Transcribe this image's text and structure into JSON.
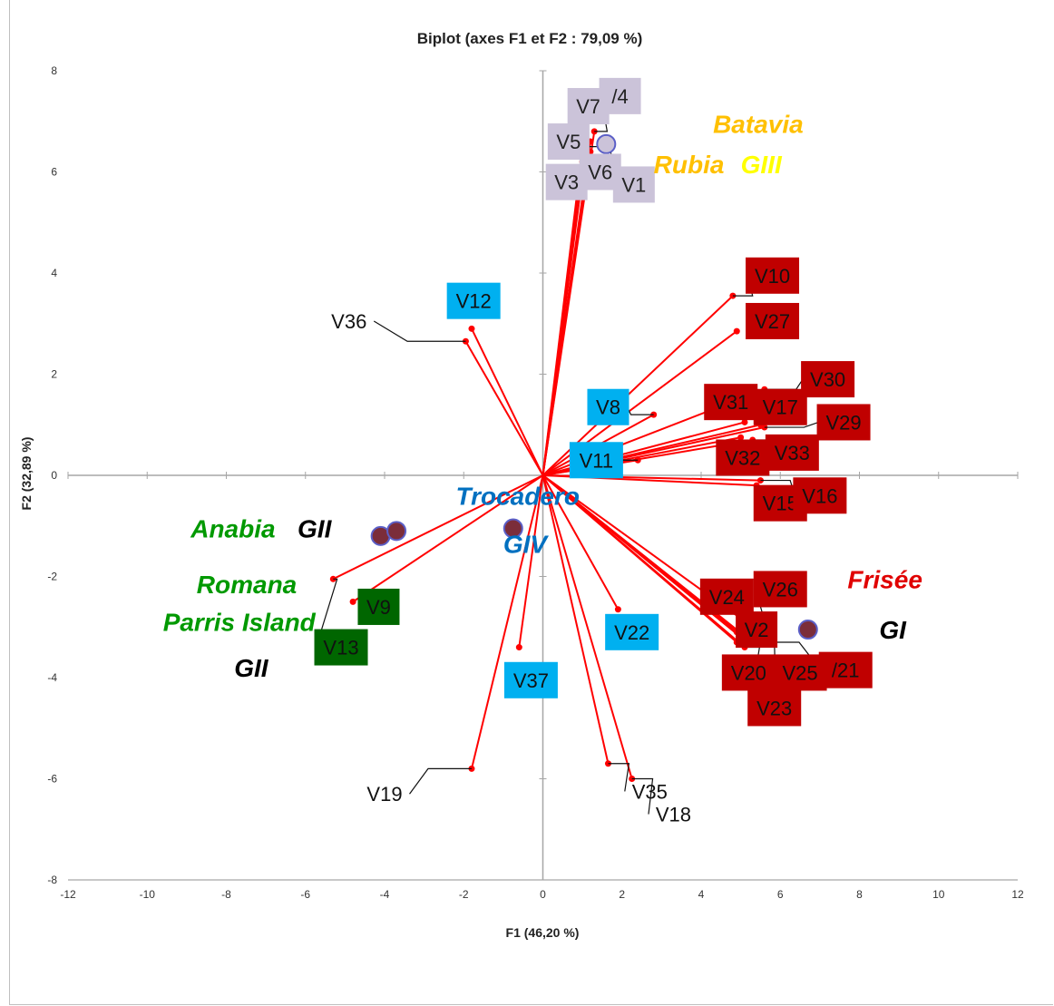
{
  "chart_data": {
    "type": "scatter",
    "subtype": "biplot",
    "title": "Biplot (axes F1 et F2 : 79,09 %)",
    "xlabel": "F1 (46,20 %)",
    "ylabel": "F2 (32,89 %)",
    "xlim": [
      -12,
      12
    ],
    "ylim": [
      -8,
      8
    ],
    "xticks": [
      -12,
      -10,
      -8,
      -6,
      -4,
      -2,
      0,
      2,
      4,
      6,
      8,
      10,
      12
    ],
    "yticks": [
      -8,
      -6,
      -4,
      -2,
      0,
      2,
      4,
      6,
      8
    ],
    "grid": false,
    "colors": {
      "vector": "#ff0000",
      "box_gray": "#cbc3d9",
      "box_blue": "#00b0f0",
      "box_red": "#c00000",
      "box_green": "#006600",
      "obs_fill": "#7b2d3a",
      "obs_stroke": "#5b5fc7"
    },
    "variables": [
      {
        "label": "V1",
        "x": 1.1,
        "y": 6.5,
        "box": "gray",
        "lx": 2.3,
        "ly": 5.75
      },
      {
        "label": "V3",
        "x": 0.9,
        "y": 5.8,
        "box": "gray",
        "lx": 0.6,
        "ly": 5.8
      },
      {
        "label": "V5",
        "x": 1.0,
        "y": 6.2,
        "box": "gray",
        "lx": 0.65,
        "ly": 6.6
      },
      {
        "label": "V6",
        "x": 1.2,
        "y": 6.4,
        "box": "gray",
        "lx": 1.45,
        "ly": 6.0
      },
      {
        "label": "V7",
        "x": 1.2,
        "y": 6.6,
        "box": "gray",
        "lx": 1.15,
        "ly": 7.3
      },
      {
        "label": "/4",
        "x": 1.3,
        "y": 6.8,
        "box": "gray",
        "lx": 1.95,
        "ly": 7.5
      },
      {
        "label": "V8",
        "x": 2.8,
        "y": 1.2,
        "box": "blue",
        "lx": 1.65,
        "ly": 1.35
      },
      {
        "label": "V11",
        "x": 2.4,
        "y": 0.3,
        "box": "blue",
        "lx": 1.35,
        "ly": 0.3
      },
      {
        "label": "V12",
        "x": -1.8,
        "y": 2.9,
        "box": "blue",
        "lx": -1.75,
        "ly": 3.45
      },
      {
        "label": "V22",
        "x": 1.9,
        "y": -2.65,
        "box": "blue",
        "lx": 2.25,
        "ly": -3.1
      },
      {
        "label": "V37",
        "x": -0.6,
        "y": -3.4,
        "box": "blue",
        "lx": -0.3,
        "ly": -4.05
      },
      {
        "label": "V10",
        "x": 4.8,
        "y": 3.55,
        "box": "red",
        "lx": 5.8,
        "ly": 3.95
      },
      {
        "label": "V27",
        "x": 4.9,
        "y": 2.85,
        "box": "red",
        "lx": 5.8,
        "ly": 3.05
      },
      {
        "label": "V30",
        "x": 5.6,
        "y": 1.7,
        "box": "red",
        "lx": 7.2,
        "ly": 1.9
      },
      {
        "label": "V31",
        "x": 5.1,
        "y": 1.05,
        "box": "red",
        "lx": 4.75,
        "ly": 1.45
      },
      {
        "label": "V17",
        "x": 5.5,
        "y": 1.0,
        "box": "red",
        "lx": 6.0,
        "ly": 1.35
      },
      {
        "label": "V29",
        "x": 5.6,
        "y": 0.95,
        "box": "red",
        "lx": 7.6,
        "ly": 1.05
      },
      {
        "label": "V32",
        "x": 5.0,
        "y": 0.75,
        "box": "red",
        "lx": 5.05,
        "ly": 0.35
      },
      {
        "label": "V33",
        "x": 5.3,
        "y": 0.7,
        "box": "red",
        "lx": 6.3,
        "ly": 0.45
      },
      {
        "label": "V15",
        "x": 5.4,
        "y": -0.2,
        "box": "red",
        "lx": 6.0,
        "ly": -0.55
      },
      {
        "label": "V16",
        "x": 5.5,
        "y": -0.1,
        "box": "red",
        "lx": 7.0,
        "ly": -0.4
      },
      {
        "label": "V24",
        "x": 4.9,
        "y": -3.1,
        "box": "red",
        "lx": 4.65,
        "ly": -2.4
      },
      {
        "label": "V26",
        "x": 5.3,
        "y": -3.0,
        "box": "red",
        "lx": 6.0,
        "ly": -2.25
      },
      {
        "label": "V2",
        "x": 5.0,
        "y": -3.2,
        "box": "red",
        "lx": 5.4,
        "ly": -3.05
      },
      {
        "label": "V20",
        "x": 4.9,
        "y": -3.3,
        "box": "red",
        "lx": 5.2,
        "ly": -3.9
      },
      {
        "label": "V25",
        "x": 5.2,
        "y": -3.25,
        "box": "red",
        "lx": 6.5,
        "ly": -3.9
      },
      {
        "label": "/21",
        "x": 5.3,
        "y": -3.3,
        "box": "red",
        "lx": 7.65,
        "ly": -3.85
      },
      {
        "label": "V23",
        "x": 5.1,
        "y": -3.4,
        "box": "red",
        "lx": 5.85,
        "ly": -4.6
      },
      {
        "label": "V9",
        "x": -4.8,
        "y": -2.5,
        "box": "green",
        "lx": -4.15,
        "ly": -2.6
      },
      {
        "label": "V13",
        "x": -5.3,
        "y": -2.05,
        "box": "green",
        "lx": -5.1,
        "ly": -3.4
      },
      {
        "label": "V36",
        "x": -1.95,
        "y": 2.65,
        "box": "none",
        "lx": -4.9,
        "ly": 3.05
      },
      {
        "label": "V19",
        "x": -1.8,
        "y": -5.8,
        "box": "none",
        "lx": -4.0,
        "ly": -6.3
      },
      {
        "label": "V35",
        "x": 1.65,
        "y": -5.7,
        "box": "none",
        "lx": 2.7,
        "ly": -6.25
      },
      {
        "label": "V18",
        "x": 2.25,
        "y": -6.0,
        "box": "none",
        "lx": 3.3,
        "ly": -6.7
      }
    ],
    "observations": [
      {
        "x": 1.6,
        "y": 6.55,
        "color": "#cbc3d9"
      },
      {
        "x": 6.7,
        "y": -3.05,
        "color": "#7b2d3a"
      },
      {
        "x": -0.75,
        "y": -1.05,
        "color": "#7b2d3a"
      },
      {
        "x": -4.1,
        "y": -1.2,
        "color": "#7b2d3a"
      },
      {
        "x": -3.7,
        "y": -1.1,
        "color": "#7b2d3a"
      }
    ],
    "group_labels": [
      {
        "text": "Batavia",
        "x": 4.3,
        "y": 6.95,
        "color": "#ffc000"
      },
      {
        "text": "Rubia",
        "x": 2.8,
        "y": 6.15,
        "color": "#ffc000"
      },
      {
        "text": "GIII",
        "x": 5.0,
        "y": 6.15,
        "color": "#ffff00"
      },
      {
        "text": "Trocadero",
        "x": -2.2,
        "y": -0.4,
        "color": "#0070c0"
      },
      {
        "text": "GIV",
        "x": -1.0,
        "y": -1.35,
        "color": "#0070c0"
      },
      {
        "text": "Frisée",
        "x": 7.7,
        "y": -2.05,
        "color": "#e00000"
      },
      {
        "text": "GI",
        "x": 8.5,
        "y": -3.05,
        "color": "#000000"
      },
      {
        "text": "Anabia",
        "x": -8.9,
        "y": -1.05,
        "color": "#009900"
      },
      {
        "text": "GII",
        "x": -6.2,
        "y": -1.05,
        "color": "#000000"
      },
      {
        "text": "Romana",
        "x": -8.75,
        "y": -2.15,
        "color": "#009900"
      },
      {
        "text": "Parris Island",
        "x": -9.6,
        "y": -2.9,
        "color": "#009900"
      },
      {
        "text": "GII",
        "x": -7.8,
        "y": -3.8,
        "color": "#000000"
      }
    ]
  }
}
